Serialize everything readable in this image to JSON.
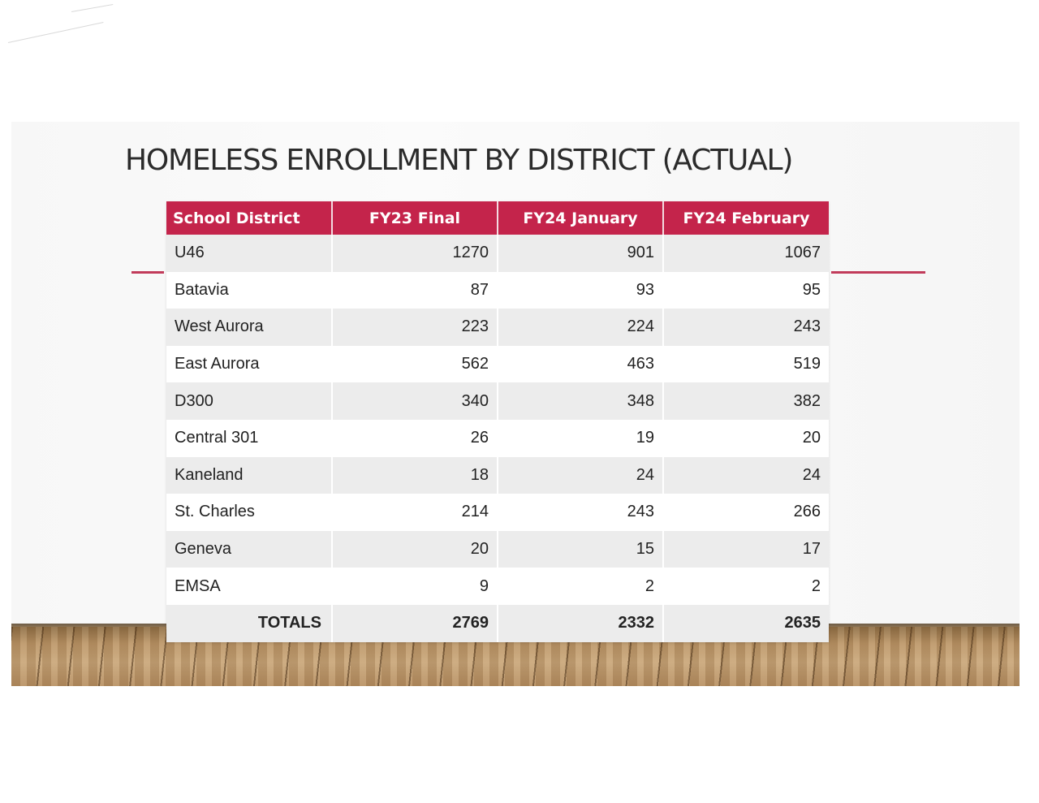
{
  "slide": {
    "title": "HOMELESS ENROLLMENT BY DISTRICT (ACTUAL)",
    "accent_color": "#c4244b"
  },
  "table": {
    "headers": [
      "School District",
      "FY23 Final",
      "FY24 January",
      "FY24 February"
    ],
    "rows": [
      [
        "U46",
        "1270",
        "901",
        "1067"
      ],
      [
        "Batavia",
        "87",
        "93",
        "95"
      ],
      [
        "West Aurora",
        "223",
        "224",
        "243"
      ],
      [
        "East Aurora",
        "562",
        "463",
        "519"
      ],
      [
        "D300",
        "340",
        "348",
        "382"
      ],
      [
        "Central 301",
        "26",
        "19",
        "20"
      ],
      [
        "Kaneland",
        "18",
        "24",
        "24"
      ],
      [
        "St. Charles",
        "214",
        "243",
        "266"
      ],
      [
        "Geneva",
        "20",
        "15",
        "17"
      ],
      [
        "EMSA",
        "9",
        "2",
        "2"
      ]
    ],
    "totals": [
      "TOTALS",
      "2769",
      "2332",
      "2635"
    ]
  }
}
